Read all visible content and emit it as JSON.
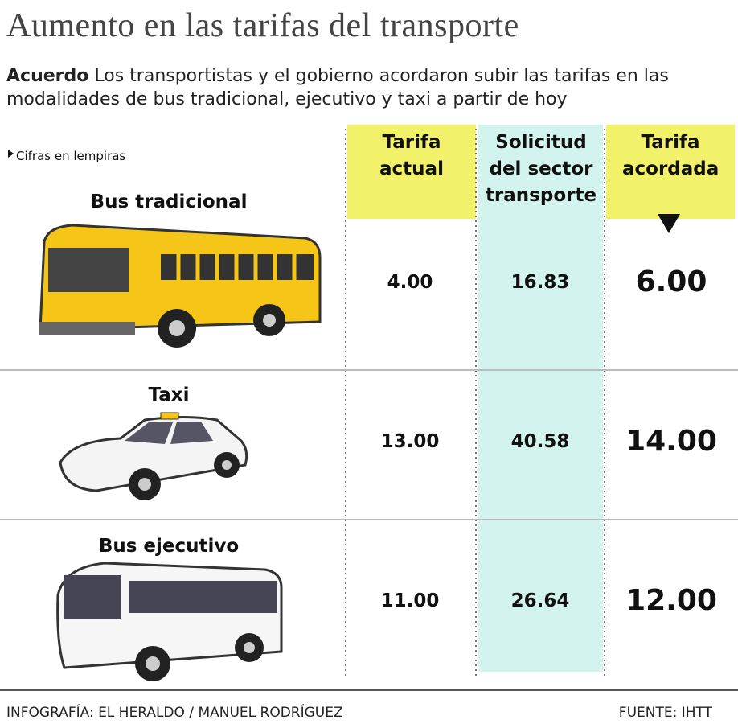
{
  "header": {
    "title": "Aumento en las tarifas del transporte",
    "lead": "Acuerdo",
    "intro": "Los transportistas y el gobierno acordaron subir las tarifas en las modalidades de bus tradicional, ejecutivo y taxi a partir de hoy",
    "note": "Cifras en lempiras"
  },
  "table": {
    "columns": [
      "Tarifa actual",
      "Solicitud del sector transporte",
      "Tarifa acordada"
    ],
    "rows": [
      {
        "label": "Bus tradicional",
        "values": [
          "4.00",
          "16.83",
          "6.00"
        ]
      },
      {
        "label": "Taxi",
        "values": [
          "13.00",
          "40.58",
          "14.00"
        ]
      },
      {
        "label": "Bus ejecutivo",
        "values": [
          "11.00",
          "26.64",
          "12.00"
        ]
      }
    ]
  },
  "footer": {
    "credit": "INFOGRAFÍA: EL HERALDO / MANUEL RODRÍGUEZ",
    "source": "FUENTE: IHTT"
  }
}
